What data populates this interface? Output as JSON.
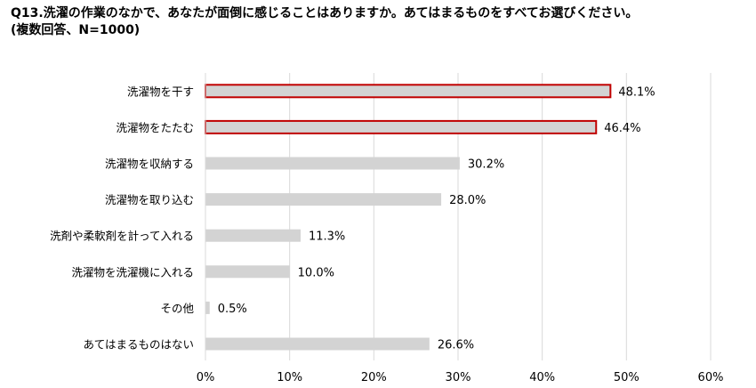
{
  "title_line1": "Q13.洗濯の作業のなかで、あなたが面倒に感じることはありますか。あてはまるものをすべてお選びください。",
  "title_line2": "(複数回答、N=1000)",
  "chart_data": {
    "type": "bar",
    "orientation": "horizontal",
    "categories": [
      "洗濯物を干す",
      "洗濯物をたたむ",
      "洗濯物を収納する",
      "洗濯物を取り込む",
      "洗剤や柔軟剤を計って入れる",
      "洗濯物を洗濯機に入れる",
      "その他",
      "あてはまるものはない"
    ],
    "values": [
      48.1,
      46.4,
      30.2,
      28.0,
      11.3,
      10.0,
      0.5,
      26.6
    ],
    "value_labels": [
      "48.1%",
      "46.4%",
      "30.2%",
      "28.0%",
      "11.3%",
      "10.0%",
      "0.5%",
      "26.6%"
    ],
    "highlighted": [
      true,
      true,
      false,
      false,
      false,
      false,
      false,
      false
    ],
    "xlim": [
      0,
      60
    ],
    "xticks": [
      0,
      10,
      20,
      30,
      40,
      50,
      60
    ],
    "xtick_labels": [
      "0%",
      "10%",
      "20%",
      "30%",
      "40%",
      "50%",
      "60%"
    ],
    "grid": true,
    "colors": {
      "bar_fill": "#d3d3d3",
      "highlight_stroke": "#c00000",
      "grid": "#d9d9d9"
    }
  }
}
